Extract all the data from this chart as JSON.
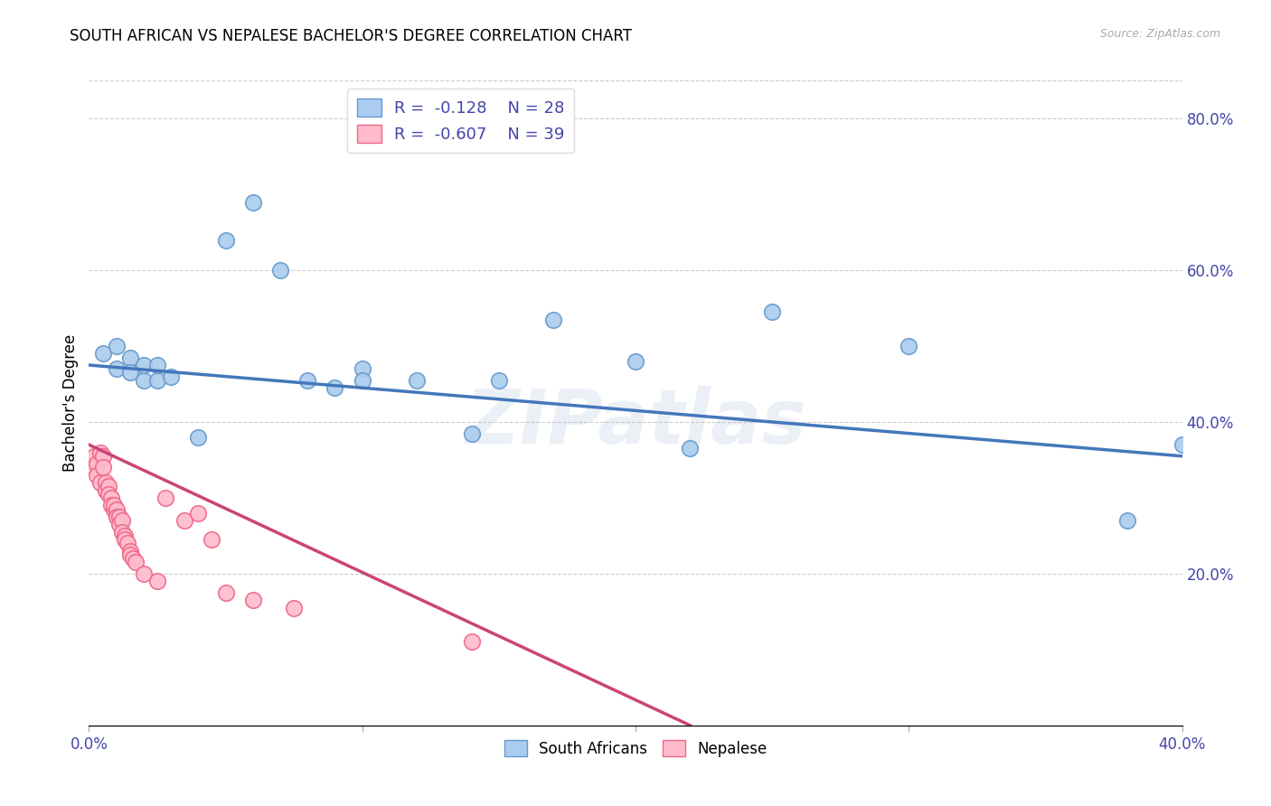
{
  "title": "SOUTH AFRICAN VS NEPALESE BACHELOR'S DEGREE CORRELATION CHART",
  "source": "Source: ZipAtlas.com",
  "ylabel": "Bachelor's Degree",
  "xlim": [
    0.0,
    0.4
  ],
  "ylim": [
    0.0,
    0.85
  ],
  "x_ticks": [
    0.0,
    0.1,
    0.2,
    0.3,
    0.4
  ],
  "x_tick_labels_show": [
    "0.0%",
    "",
    "",
    "",
    "40.0%"
  ],
  "y_ticks_right": [
    0.2,
    0.4,
    0.6,
    0.8
  ],
  "y_tick_labels_right": [
    "20.0%",
    "40.0%",
    "60.0%",
    "80.0%"
  ],
  "grid_color": "#cccccc",
  "background_color": "#ffffff",
  "blue_line_color": "#4477bb",
  "pink_line_color": "#cc4477",
  "blue_marker_face": "#aaccee",
  "blue_marker_edge": "#6699cc",
  "pink_marker_face": "#ffbbcc",
  "pink_marker_edge": "#ee6688",
  "legend_blue_label": "R =  -0.128    N = 28",
  "legend_pink_label": "R =  -0.607    N = 39",
  "blue_scatter_x": [
    0.005,
    0.01,
    0.01,
    0.015,
    0.015,
    0.02,
    0.02,
    0.025,
    0.025,
    0.03,
    0.04,
    0.05,
    0.06,
    0.07,
    0.08,
    0.09,
    0.1,
    0.1,
    0.12,
    0.14,
    0.15,
    0.17,
    0.2,
    0.22,
    0.25,
    0.3,
    0.38,
    0.4
  ],
  "blue_scatter_y": [
    0.49,
    0.5,
    0.47,
    0.485,
    0.465,
    0.455,
    0.475,
    0.455,
    0.475,
    0.46,
    0.38,
    0.64,
    0.69,
    0.6,
    0.455,
    0.445,
    0.47,
    0.455,
    0.455,
    0.385,
    0.455,
    0.535,
    0.48,
    0.365,
    0.545,
    0.5,
    0.27,
    0.37
  ],
  "pink_scatter_x": [
    0.002,
    0.002,
    0.003,
    0.003,
    0.004,
    0.004,
    0.005,
    0.005,
    0.006,
    0.006,
    0.007,
    0.007,
    0.008,
    0.008,
    0.009,
    0.009,
    0.01,
    0.01,
    0.011,
    0.011,
    0.012,
    0.012,
    0.013,
    0.013,
    0.014,
    0.015,
    0.015,
    0.016,
    0.017,
    0.02,
    0.025,
    0.028,
    0.035,
    0.04,
    0.045,
    0.05,
    0.06,
    0.075,
    0.14
  ],
  "pink_scatter_y": [
    0.355,
    0.34,
    0.345,
    0.33,
    0.36,
    0.32,
    0.355,
    0.34,
    0.32,
    0.31,
    0.315,
    0.305,
    0.3,
    0.29,
    0.285,
    0.29,
    0.285,
    0.275,
    0.275,
    0.265,
    0.27,
    0.255,
    0.25,
    0.245,
    0.24,
    0.23,
    0.225,
    0.22,
    0.215,
    0.2,
    0.19,
    0.3,
    0.27,
    0.28,
    0.245,
    0.175,
    0.165,
    0.155,
    0.11
  ],
  "blue_line_x": [
    0.0,
    0.4
  ],
  "blue_line_y": [
    0.475,
    0.355
  ],
  "pink_line_x": [
    0.0,
    0.22
  ],
  "pink_line_y": [
    0.37,
    0.0
  ],
  "watermark": "ZIPatlas",
  "legend_fontsize": 13,
  "title_fontsize": 12,
  "axis_color": "#4444aa",
  "tick_label_color": "#4444aa"
}
